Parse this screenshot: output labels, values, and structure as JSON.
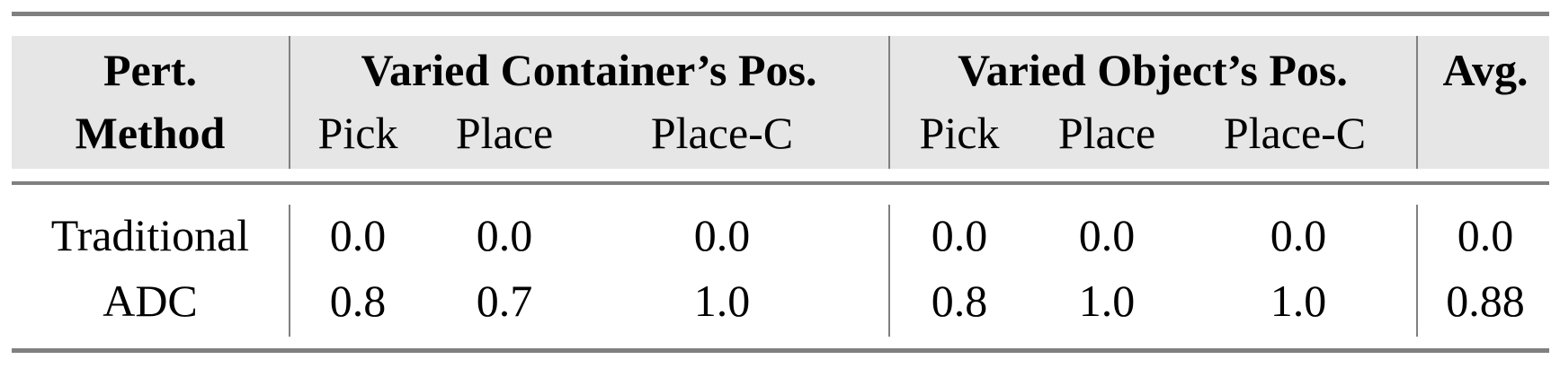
{
  "table": {
    "header": {
      "method_line1": "Pert.",
      "method_line2": "Method",
      "group1": "Varied Container’s Pos.",
      "group2": "Varied Object’s Pos.",
      "avg": "Avg.",
      "subcolumns": [
        "Pick",
        "Place",
        "Place-C",
        "Pick",
        "Place",
        "Place-C"
      ]
    },
    "rows": [
      {
        "method": "Traditional",
        "values": [
          "0.0",
          "0.0",
          "0.0",
          "0.0",
          "0.0",
          "0.0"
        ],
        "avg": "0.0"
      },
      {
        "method": "ADC",
        "values": [
          "0.8",
          "0.7",
          "1.0",
          "0.8",
          "1.0",
          "1.0"
        ],
        "avg": "0.88"
      }
    ]
  }
}
